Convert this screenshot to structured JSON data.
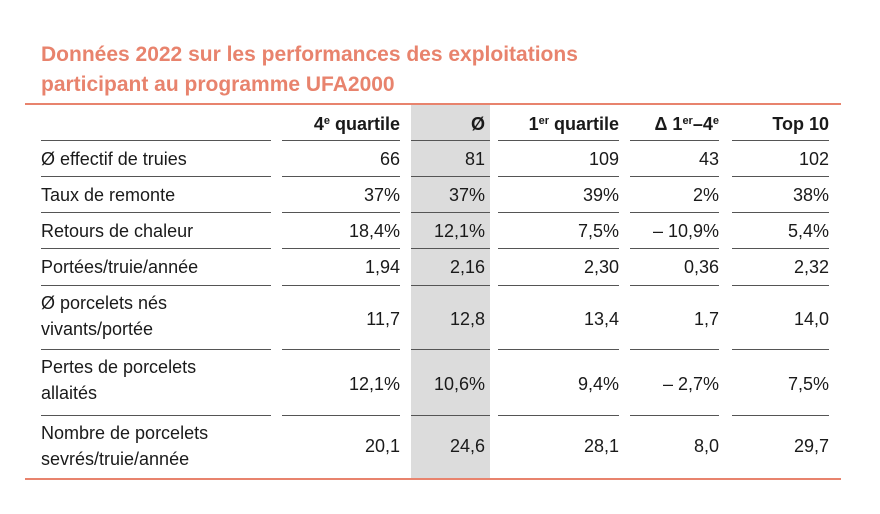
{
  "title_line1": "Données 2022 sur les performances des exploitations",
  "title_line2": "participant au programme UFA2000",
  "headers": {
    "q4_base": "4",
    "q4_sup": "e",
    "q4_tail": " quartile",
    "avg": "Ø",
    "q1_base": "1",
    "q1_sup": "er",
    "q1_tail": " quartile",
    "delta_a": "Δ 1",
    "delta_sup1": "er",
    "delta_b": "–4",
    "delta_sup2": "e",
    "top10": "Top 10"
  },
  "rows": [
    {
      "label1": "Ø effectif de truies",
      "label2": "",
      "q4": "66",
      "avg": "81",
      "q1": "109",
      "delta": "43",
      "top10": "102"
    },
    {
      "label1": "Taux de remonte",
      "label2": "",
      "q4": "37%",
      "avg": "37%",
      "q1": "39%",
      "delta": "2%",
      "top10": "38%"
    },
    {
      "label1": "Retours de chaleur",
      "label2": "",
      "q4": "18,4%",
      "avg": "12,1%",
      "q1": "7,5%",
      "delta": "– 10,9%",
      "top10": "5,4%"
    },
    {
      "label1": "Portées/truie/année",
      "label2": "",
      "q4": "1,94",
      "avg": "2,16",
      "q1": "2,30",
      "delta": "0,36",
      "top10": "2,32"
    },
    {
      "label1": "Ø porcelets nés",
      "label2": "vivants/portée",
      "q4": "11,7",
      "avg": "12,8",
      "q1": "13,4",
      "delta": "1,7",
      "top10": "14,0"
    },
    {
      "label1": "Pertes de porcelets",
      "label2": "allaités",
      "q4": "12,1%",
      "avg": "10,6%",
      "q1": "9,4%",
      "delta": "– 2,7%",
      "top10": "7,5%"
    },
    {
      "label1": "Nombre de porcelets",
      "label2": "sevrés/truie/année",
      "q4": "20,1",
      "avg": "24,6",
      "q1": "28,1",
      "delta": "8,0",
      "top10": "29,7"
    }
  ]
}
